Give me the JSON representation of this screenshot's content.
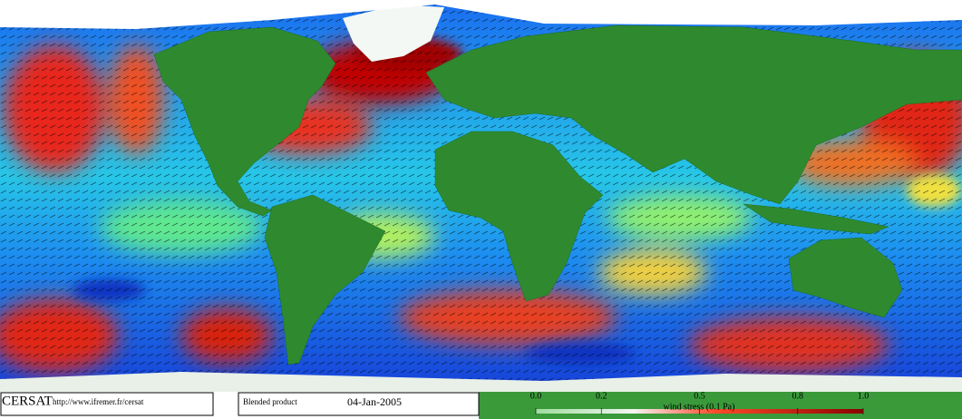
{
  "footer": {
    "source": "CERSAT",
    "url": "http://www.ifremer.fr/cersat",
    "product": "Blended product",
    "date": "04-Jan-2005"
  },
  "colorbar": {
    "ticks": [
      {
        "value": 0,
        "label": "0.0"
      },
      0.2,
      0.5,
      0.8,
      {
        "value": 1,
        "label": "1.0"
      }
    ],
    "label": "wind stress (0.1 Pa)"
  }
}
